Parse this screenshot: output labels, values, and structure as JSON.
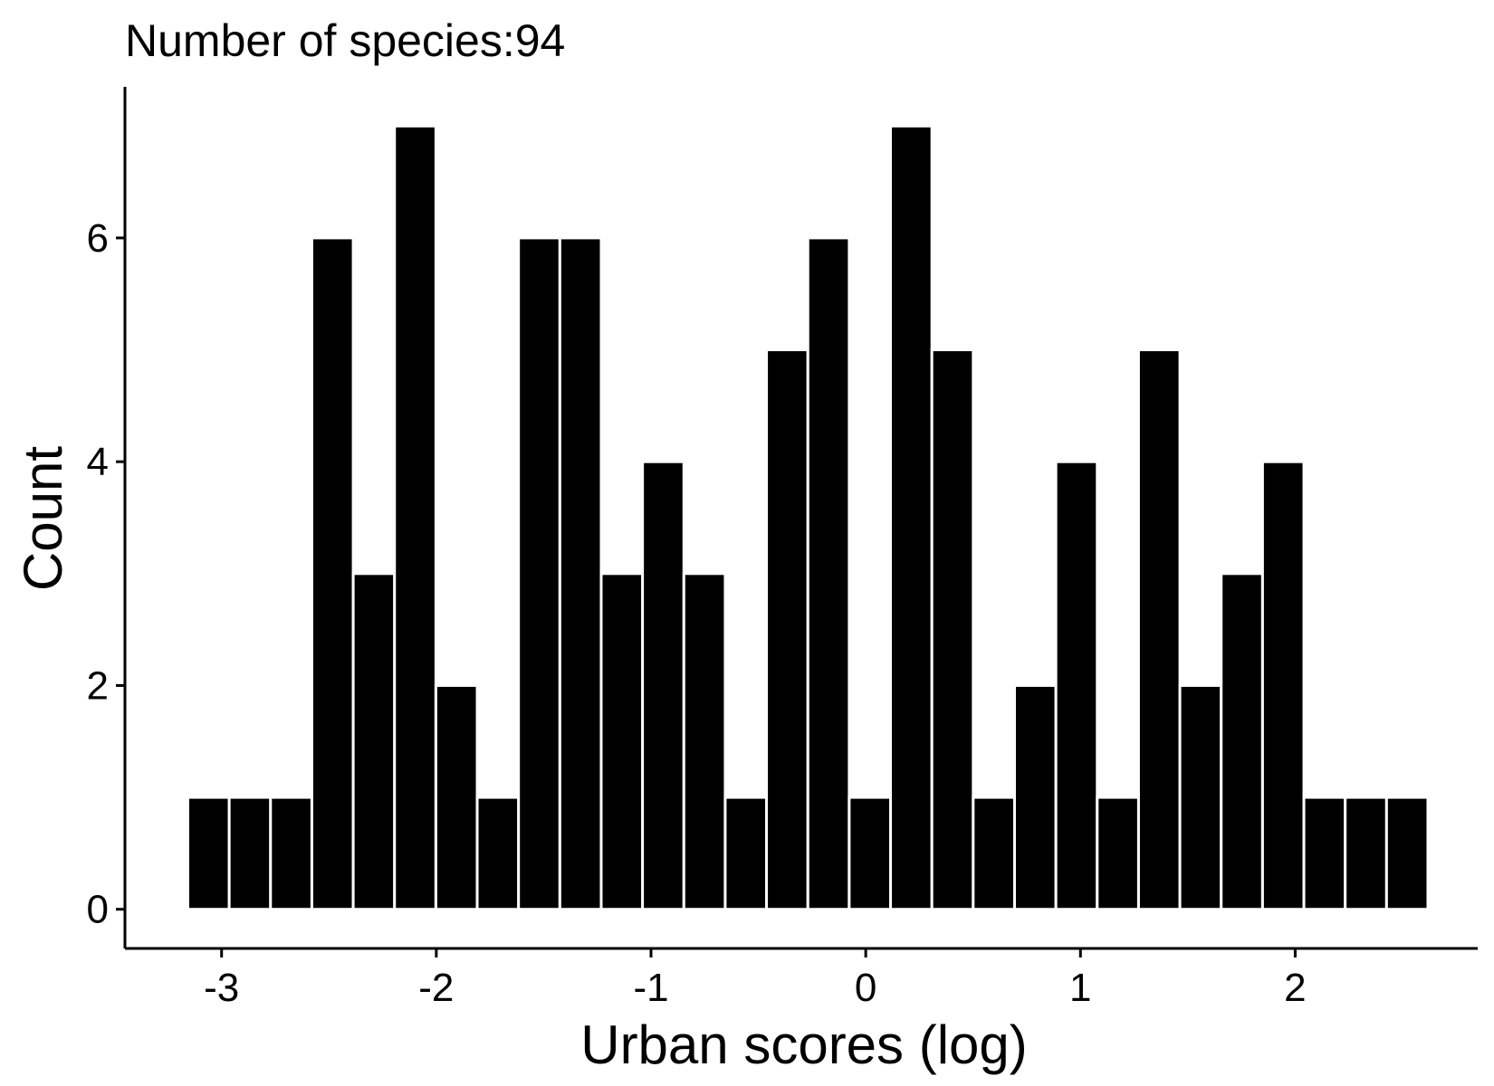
{
  "chart_data": {
    "type": "bar",
    "title": "Number of species:94",
    "xlabel": "Urban scores (log)",
    "ylabel": "Count",
    "xlim": [
      -3.45,
      2.85
    ],
    "ylim": [
      -0.35,
      7.35
    ],
    "x_ticks": [
      -3,
      -2,
      -1,
      0,
      1,
      2
    ],
    "x_tick_labels": [
      "-3",
      "-2",
      "-1",
      "0",
      "1",
      "2"
    ],
    "y_ticks": [
      0,
      2,
      4,
      6
    ],
    "y_tick_labels": [
      "0",
      "2",
      "4",
      "6"
    ],
    "bin_width": 0.1925,
    "bin_start": -3.157,
    "counts": [
      1,
      1,
      1,
      6,
      3,
      7,
      2,
      1,
      6,
      6,
      3,
      4,
      3,
      1,
      5,
      6,
      1,
      7,
      5,
      1,
      2,
      4,
      1,
      5,
      2,
      3,
      4,
      1,
      1,
      1
    ],
    "bar_color": "#000000",
    "bar_outline": "#ffffff",
    "grid": false,
    "legend": "none"
  }
}
